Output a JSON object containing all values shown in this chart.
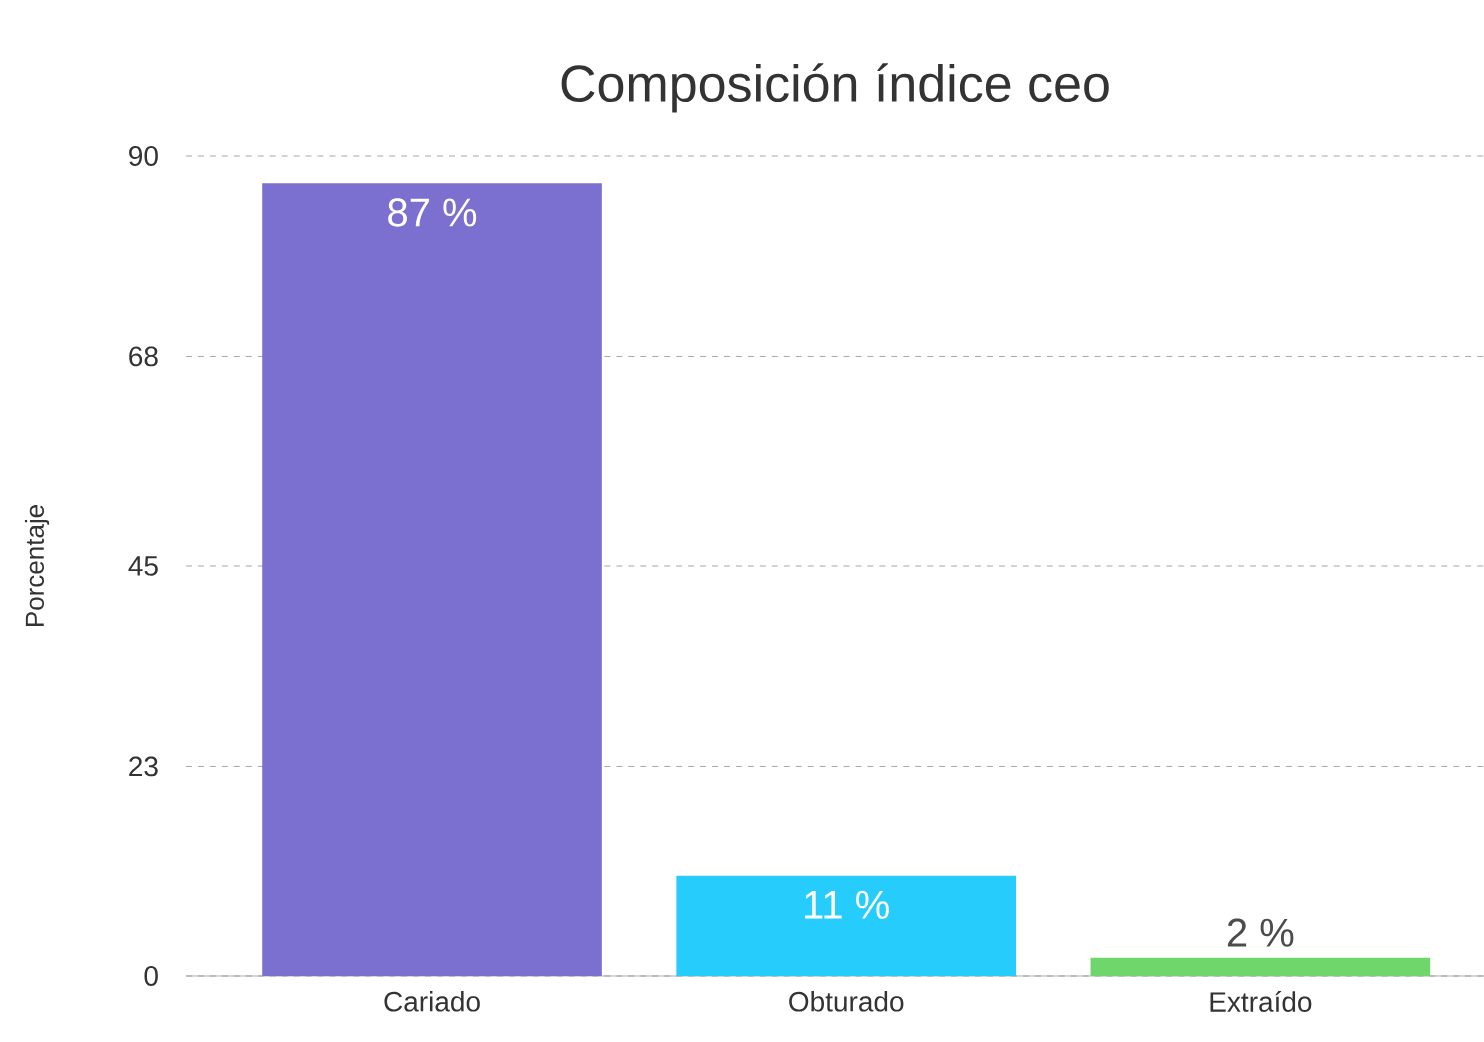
{
  "chart_data": {
    "type": "bar",
    "title": "Composición índice ceo",
    "ylabel": "Porcentaje",
    "categories": [
      "Cariado",
      "Obturado",
      "Extraído"
    ],
    "values": [
      87,
      11,
      2
    ],
    "value_labels": [
      "87 %",
      "11 %",
      "2 %"
    ],
    "colors": [
      "#7b6fd0",
      "#26ccfb",
      "#6ed66a"
    ],
    "ylim": [
      0,
      90
    ],
    "yticks": [
      0,
      23,
      45,
      68,
      90
    ],
    "grid": "y"
  }
}
